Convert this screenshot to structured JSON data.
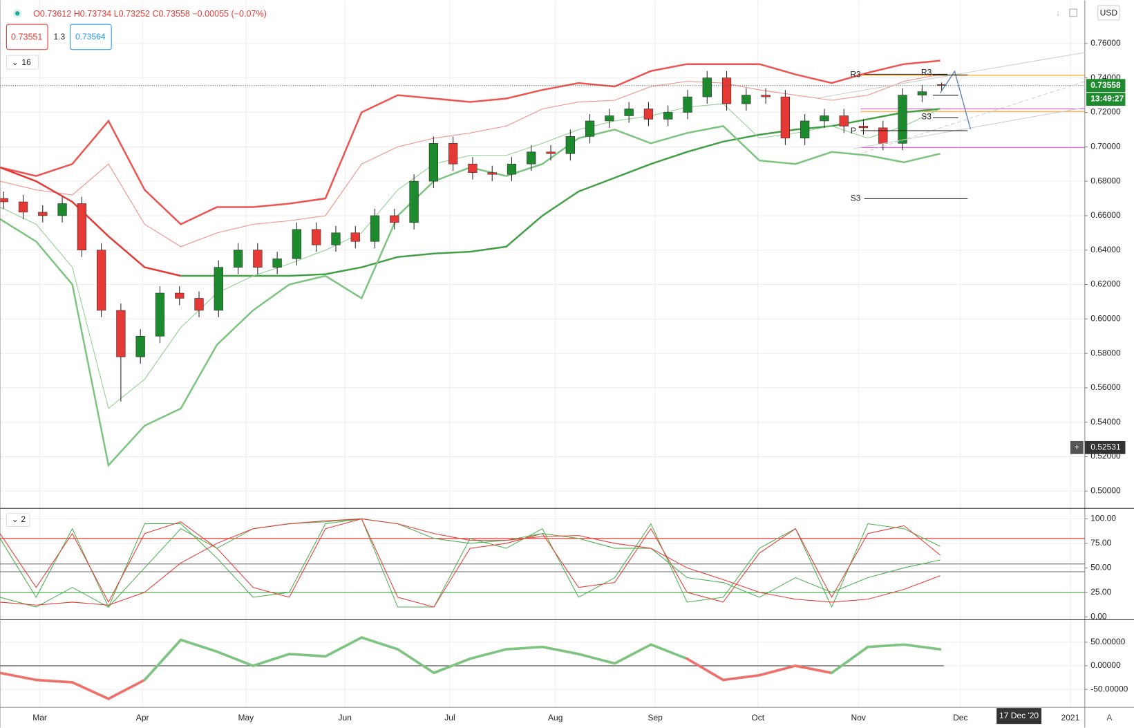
{
  "header": {
    "ohlc": "O0.73612 H0.73734 L0.73252 C0.73558 −0.00055 (−0.07%)",
    "sell": "0.73551",
    "spread": "1.3",
    "buy": "0.73564",
    "indicators": "16",
    "currency": "USD",
    "sub_indicators": "2"
  },
  "time_axis": {
    "labels": [
      "Mar",
      "Apr",
      "May",
      "Jun",
      "Jul",
      "Aug",
      "Sep",
      "Oct",
      "Nov",
      "Dec",
      "2021"
    ],
    "cursor_label": "17 Dec '20",
    "auto": "A"
  },
  "chart_data": [
    {
      "type": "candlestick",
      "up_color": "#1e8a2e",
      "down_color": "#e53935",
      "open": [
        0.67,
        0.668,
        0.662,
        0.66,
        0.667,
        0.64,
        0.605,
        0.578,
        0.59,
        0.615,
        0.612,
        0.605,
        0.63,
        0.64,
        0.63,
        0.635,
        0.652,
        0.643,
        0.65,
        0.645,
        0.66,
        0.656,
        0.68,
        0.702,
        0.69,
        0.685,
        0.684,
        0.69,
        0.697,
        0.696,
        0.706,
        0.715,
        0.718,
        0.722,
        0.716,
        0.72,
        0.729,
        0.74,
        0.725,
        0.73,
        0.729,
        0.705,
        0.715,
        0.718,
        0.712,
        0.711,
        0.702,
        0.73,
        0.73612
      ],
      "high": [
        0.674,
        0.672,
        0.666,
        0.671,
        0.671,
        0.644,
        0.609,
        0.594,
        0.619,
        0.619,
        0.616,
        0.634,
        0.644,
        0.644,
        0.639,
        0.656,
        0.656,
        0.654,
        0.654,
        0.664,
        0.664,
        0.684,
        0.706,
        0.706,
        0.694,
        0.689,
        0.694,
        0.701,
        0.701,
        0.71,
        0.719,
        0.722,
        0.726,
        0.726,
        0.724,
        0.733,
        0.744,
        0.744,
        0.734,
        0.734,
        0.733,
        0.719,
        0.722,
        0.722,
        0.716,
        0.715,
        0.734,
        0.736,
        0.73734
      ],
      "low": [
        0.664,
        0.658,
        0.656,
        0.656,
        0.636,
        0.601,
        0.552,
        0.574,
        0.586,
        0.608,
        0.601,
        0.601,
        0.626,
        0.626,
        0.626,
        0.631,
        0.639,
        0.639,
        0.641,
        0.641,
        0.652,
        0.652,
        0.676,
        0.686,
        0.681,
        0.68,
        0.68,
        0.686,
        0.692,
        0.692,
        0.702,
        0.711,
        0.714,
        0.712,
        0.712,
        0.716,
        0.725,
        0.721,
        0.721,
        0.725,
        0.701,
        0.701,
        0.711,
        0.708,
        0.707,
        0.698,
        0.698,
        0.726,
        0.73252
      ],
      "close": [
        0.668,
        0.662,
        0.66,
        0.667,
        0.64,
        0.605,
        0.578,
        0.59,
        0.615,
        0.612,
        0.605,
        0.63,
        0.64,
        0.63,
        0.635,
        0.652,
        0.643,
        0.65,
        0.645,
        0.66,
        0.656,
        0.68,
        0.702,
        0.69,
        0.685,
        0.684,
        0.69,
        0.697,
        0.696,
        0.706,
        0.715,
        0.718,
        0.722,
        0.716,
        0.72,
        0.729,
        0.74,
        0.725,
        0.73,
        0.729,
        0.705,
        0.715,
        0.718,
        0.712,
        0.711,
        0.702,
        0.73,
        0.732,
        0.73558
      ],
      "series": [
        {
          "color": "#ef5350",
          "width": 2.4,
          "values": [
            0.688,
            0.683,
            0.69,
            0.715,
            0.675,
            0.655,
            0.665,
            0.665,
            0.667,
            0.67,
            0.72,
            0.73,
            0.728,
            0.726,
            0.728,
            0.733,
            0.737,
            0.735,
            0.744,
            0.748,
            0.748,
            0.748,
            0.742,
            0.737,
            0.743,
            0.748,
            0.75
          ]
        },
        {
          "color": "#f28b86",
          "width": 1,
          "values": [
            0.68,
            0.675,
            0.672,
            0.69,
            0.655,
            0.642,
            0.65,
            0.655,
            0.657,
            0.66,
            0.69,
            0.7,
            0.705,
            0.708,
            0.712,
            0.722,
            0.726,
            0.727,
            0.735,
            0.738,
            0.737,
            0.733,
            0.73,
            0.727,
            0.73,
            0.738,
            0.742
          ]
        },
        {
          "color": "#e53935",
          "width": 2.4,
          "values": [
            0.688,
            0.68,
            0.668,
            0.648,
            0.63,
            0.625,
            null,
            null,
            null,
            null,
            null,
            null,
            null,
            null,
            null,
            null,
            null,
            null,
            null,
            null,
            null,
            null,
            null,
            null,
            null,
            null,
            null
          ]
        },
        {
          "color": "#43a047",
          "width": 2.4,
          "values": [
            null,
            null,
            null,
            null,
            null,
            0.625,
            0.625,
            0.625,
            0.625,
            0.626,
            0.63,
            0.636,
            0.638,
            0.639,
            0.642,
            0.66,
            0.674,
            0.682,
            0.69,
            0.697,
            0.703,
            0.707,
            0.71,
            0.712,
            0.716,
            0.72,
            0.722
          ]
        },
        {
          "color": "#7cc47f",
          "width": 2.4,
          "values": [
            0.658,
            0.645,
            0.62,
            0.515,
            0.538,
            0.548,
            0.585,
            0.605,
            0.62,
            0.625,
            0.612,
            0.66,
            0.68,
            0.688,
            0.683,
            0.69,
            0.705,
            0.71,
            0.702,
            0.708,
            0.712,
            0.692,
            0.69,
            0.697,
            0.695,
            0.691,
            0.696
          ]
        },
        {
          "color": "#8fce92",
          "width": 1,
          "values": [
            0.665,
            0.655,
            0.63,
            0.548,
            0.565,
            0.595,
            0.615,
            0.625,
            0.632,
            0.64,
            0.65,
            0.675,
            0.69,
            0.695,
            0.695,
            0.702,
            0.71,
            0.715,
            0.718,
            0.723,
            0.725,
            0.705,
            0.708,
            0.712,
            0.705,
            0.712,
            0.722
          ]
        }
      ],
      "levels": [
        {
          "value": 0.7415,
          "color": "#f5b041"
        },
        {
          "value": 0.722,
          "color": "#e066e0"
        },
        {
          "value": 0.7205,
          "color": "#f5b041"
        },
        {
          "value": 0.6995,
          "color": "#e066e0"
        }
      ],
      "pivot_labels": [
        "R3",
        "R3",
        "S3",
        "P",
        "S3"
      ],
      "last_price": 0.73558,
      "countdown": "13:49:27",
      "crosshair_price": 0.52531,
      "ylim": [
        0.49,
        0.785
      ],
      "yticks": [
        {
          "value": 0.5,
          "label": "0.50000"
        },
        {
          "value": 0.52,
          "label": "0.52000"
        },
        {
          "value": 0.54,
          "label": "0.54000"
        },
        {
          "value": 0.56,
          "label": "0.56000"
        },
        {
          "value": 0.58,
          "label": "0.58000"
        },
        {
          "value": 0.6,
          "label": "0.60000"
        },
        {
          "value": 0.62,
          "label": "0.62000"
        },
        {
          "value": 0.64,
          "label": "0.64000"
        },
        {
          "value": 0.66,
          "label": "0.66000"
        },
        {
          "value": 0.68,
          "label": "0.68000"
        },
        {
          "value": 0.7,
          "label": "0.70000"
        },
        {
          "value": 0.72,
          "label": "0.72000"
        },
        {
          "value": 0.74,
          "label": "0.74000"
        },
        {
          "value": 0.76,
          "label": "0.76000"
        }
      ],
      "grid": true
    },
    {
      "type": "line",
      "series": [
        {
          "color": "#4caf50",
          "width": 1,
          "values": [
            80,
            20,
            90,
            10,
            95,
            95,
            60,
            20,
            25,
            95,
            100,
            10,
            10,
            80,
            70,
            90,
            20,
            40,
            95,
            15,
            20,
            70,
            90,
            10,
            95,
            90,
            72
          ]
        },
        {
          "color": "#e53935",
          "width": 1,
          "values": [
            85,
            30,
            85,
            15,
            85,
            97,
            70,
            30,
            20,
            90,
            100,
            20,
            10,
            70,
            75,
            85,
            30,
            35,
            90,
            25,
            15,
            65,
            90,
            20,
            85,
            93,
            63
          ]
        },
        {
          "color": "#4caf50",
          "width": 1,
          "values": [
            20,
            10,
            30,
            10,
            50,
            90,
            70,
            90,
            95,
            97,
            100,
            95,
            80,
            75,
            78,
            85,
            80,
            70,
            70,
            40,
            35,
            20,
            40,
            25,
            40,
            50,
            58
          ]
        },
        {
          "color": "#e53935",
          "width": 1,
          "values": [
            15,
            12,
            15,
            12,
            25,
            55,
            75,
            90,
            95,
            98,
            100,
            95,
            85,
            78,
            78,
            82,
            83,
            75,
            70,
            50,
            38,
            25,
            18,
            15,
            18,
            28,
            42
          ]
        }
      ],
      "levels": [
        {
          "value": 80,
          "color": "#e53935"
        },
        {
          "value": 54,
          "color": "#888888"
        },
        {
          "value": 46,
          "color": "#888888"
        },
        {
          "value": 25,
          "color": "#4caf50"
        }
      ],
      "ylim": [
        -3,
        110
      ],
      "yticks": [
        {
          "value": 0,
          "label": "0.00"
        },
        {
          "value": 25,
          "label": "25.00"
        },
        {
          "value": 50,
          "label": "50.00"
        },
        {
          "value": 75,
          "label": "75.00"
        },
        {
          "value": 100,
          "label": "100.00"
        }
      ],
      "grid": true
    },
    {
      "type": "line",
      "series": [
        {
          "pos_color": "#7cc47f",
          "neg_color": "#ef6f6a",
          "width": 3.5,
          "values": [
            -15,
            -30,
            -35,
            -70,
            -30,
            55,
            30,
            0,
            25,
            20,
            60,
            35,
            -15,
            15,
            35,
            40,
            25,
            5,
            45,
            15,
            -30,
            -20,
            0,
            -15,
            40,
            45,
            35
          ]
        }
      ],
      "levels": [
        {
          "value": 0,
          "color": "#555555"
        }
      ],
      "ylim": [
        -88,
        96
      ],
      "yticks": [
        {
          "value": 50,
          "label": "50.00000"
        },
        {
          "value": 0,
          "label": "0.00000"
        },
        {
          "value": -50,
          "label": "-50.00000"
        }
      ],
      "grid": true
    }
  ]
}
